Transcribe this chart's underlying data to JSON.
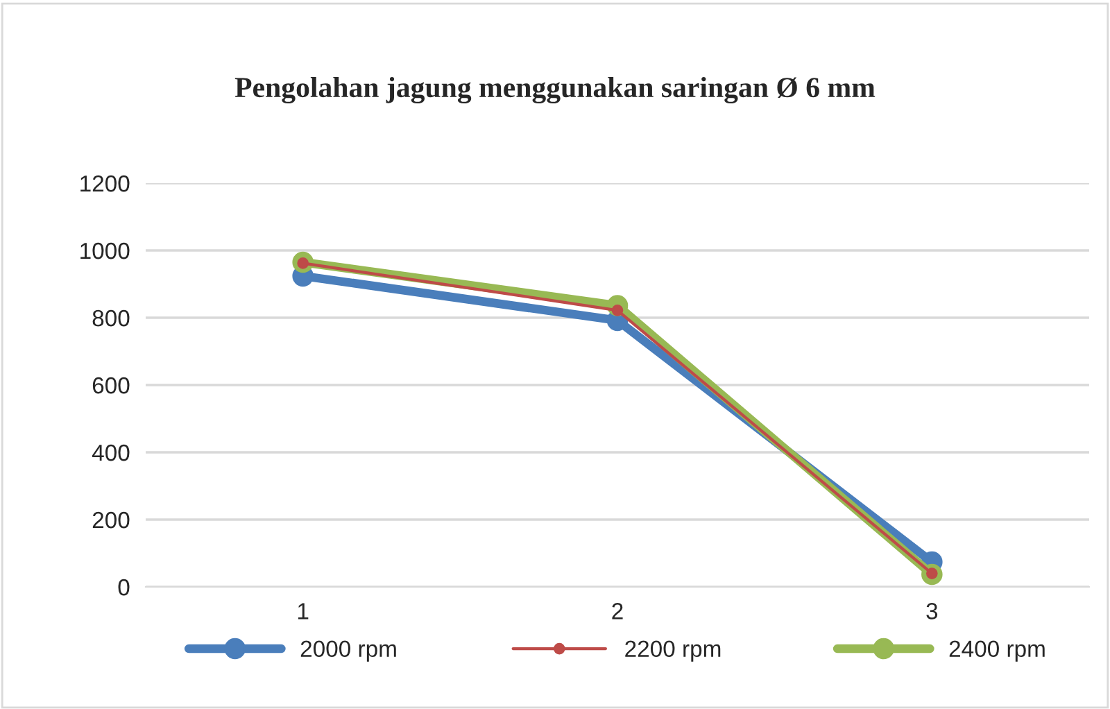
{
  "chart_data": {
    "type": "line",
    "title": "Pengolahan jagung menggunakan saringan Ø 6 mm",
    "categories": [
      "1",
      "2",
      "3"
    ],
    "series": [
      {
        "name": "2000 rpm",
        "color": "#4a7ebb",
        "values": [
          924,
          792,
          74
        ]
      },
      {
        "name": "2200 rpm",
        "color": "#be4b48",
        "values": [
          962,
          822,
          40
        ]
      },
      {
        "name": "2400 rpm",
        "color": "#98b954",
        "values": [
          965,
          836,
          37
        ]
      }
    ],
    "ylim": [
      0,
      1200
    ],
    "yticks": [
      0,
      200,
      400,
      600,
      800,
      1000,
      1200
    ],
    "grid": "y",
    "legend": "bottom",
    "marker": "circle",
    "line_style": "solid"
  }
}
